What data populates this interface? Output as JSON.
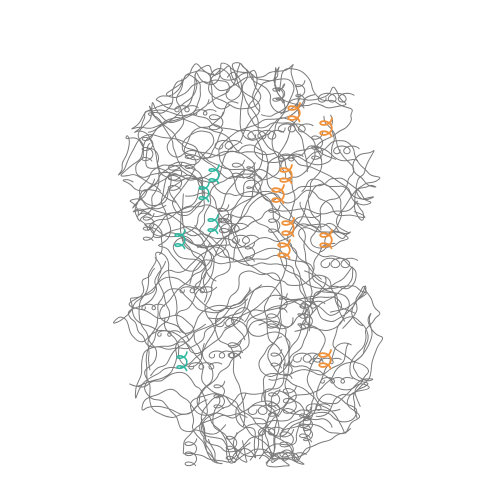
{
  "image": {
    "subject": "protein-backbone-ribbon",
    "background_color": "#ffffff",
    "backbone_color": "#7a7a7a",
    "highlight_colors": {
      "teal": "#2fb8a0",
      "orange": "#f0913a"
    }
  }
}
